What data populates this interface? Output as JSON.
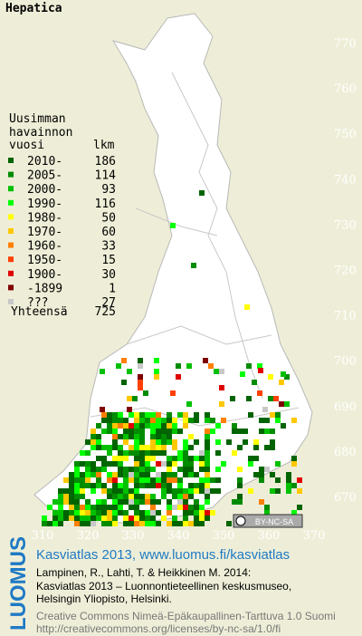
{
  "title": "Hepatica",
  "legend": {
    "heading": [
      "Uusimman",
      "havainnon"
    ],
    "col_year": "vuosi",
    "col_count": "lkm",
    "rows": [
      {
        "label": "2010-",
        "count": "186",
        "color": "#006400"
      },
      {
        "label": "2005-",
        "count": "114",
        "color": "#008c00"
      },
      {
        "label": "2000-",
        "count": "93",
        "color": "#00c000"
      },
      {
        "label": "1990-",
        "count": "116",
        "color": "#00ff00"
      },
      {
        "label": "1980-",
        "count": "50",
        "color": "#ffff00"
      },
      {
        "label": "1970-",
        "count": "60",
        "color": "#ffc800"
      },
      {
        "label": "1960-",
        "count": "33",
        "color": "#ff8000"
      },
      {
        "label": "1950-",
        "count": "15",
        "color": "#ff4000"
      },
      {
        "label": "1900-",
        "count": "30",
        "color": "#e00000"
      },
      {
        "label": "-1899",
        "count": "1",
        "color": "#800000"
      },
      {
        "label": "???",
        "count": "27",
        "color": "#c8c8c8"
      }
    ],
    "total_label": "Yhteensä",
    "total": "725"
  },
  "map": {
    "y_labels": [
      "770",
      "760",
      "750",
      "740",
      "730",
      "720",
      "710",
      "700",
      "690",
      "680",
      "670"
    ],
    "x_labels": [
      "310",
      "320",
      "330",
      "340",
      "350",
      "360",
      "370"
    ],
    "license_badge": "BY-NC-SA"
  },
  "footer": {
    "logo": "LUOMUS",
    "headline": "Kasviatlas 2013, www.luomus.fi/kasviatlas",
    "citation": [
      "Lampinen, R., Lahti, T. & Heikkinen M. 2014:",
      "Kasviatlas 2013 – Luonnontieteellinen keskusmuseo,",
      "Helsingin Yliopisto, Helsinki."
    ],
    "license": [
      "Creative Commons Nimeä-Epäkaupallinen-Tarttuva 1.0 Suomi",
      "http://creativecommons.org/licenses/by-nc-sa/1.0/fi"
    ]
  }
}
